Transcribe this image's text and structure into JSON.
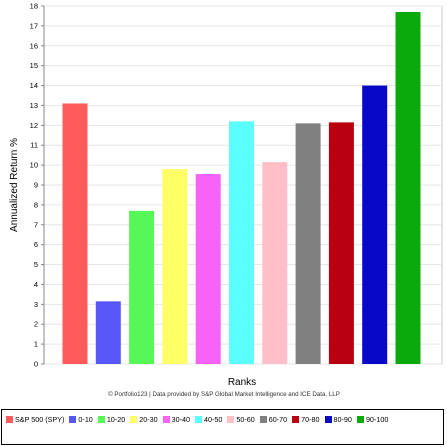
{
  "chart_data": {
    "type": "bar",
    "xlabel": "Ranks",
    "ylabel": "Annualized Return %",
    "ylim": [
      0,
      18
    ],
    "yticks": [
      0,
      1,
      2,
      3,
      4,
      5,
      6,
      7,
      8,
      9,
      10,
      11,
      12,
      13,
      14,
      15,
      16,
      17,
      18
    ],
    "grid": true,
    "categories": [
      "S&P 500 (SPY)",
      "0-10",
      "10-20",
      "20-30",
      "30-40",
      "40-50",
      "50-60",
      "60-70",
      "70-80",
      "80-90",
      "90-100"
    ],
    "values": [
      13.1,
      3.15,
      7.7,
      9.8,
      9.55,
      12.2,
      10.15,
      12.1,
      12.15,
      14.0,
      17.7
    ],
    "colors": [
      "#ff5b5b",
      "#5757f7",
      "#57f757",
      "#ffff66",
      "#f763f7",
      "#5bffff",
      "#ffbfc8",
      "#808080",
      "#b80010",
      "#0808c8",
      "#0aaa0a"
    ],
    "footnote": "© Portfolio123 | Data provided by S&P Global Market Intelligence and ICE Data, LLP",
    "legend_position": "bottom"
  }
}
